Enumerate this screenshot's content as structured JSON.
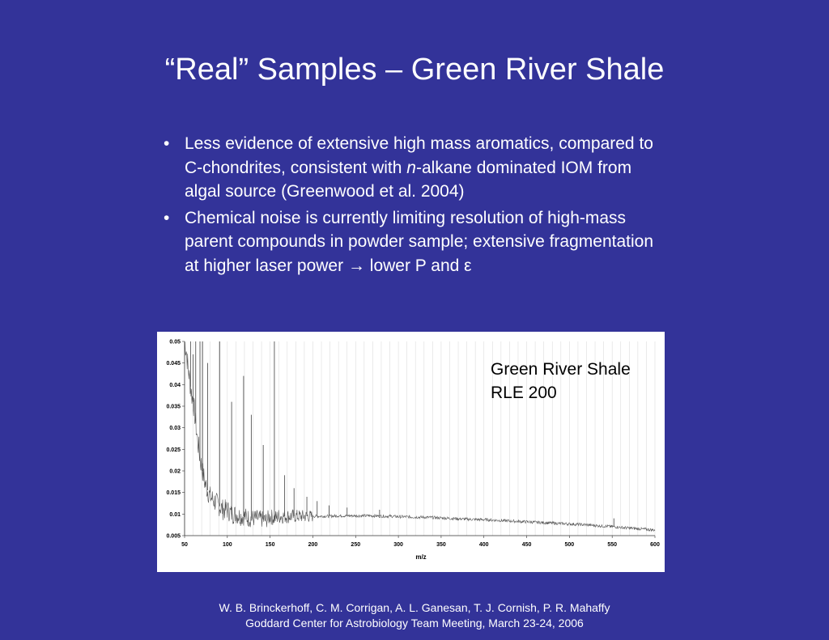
{
  "slide": {
    "title": "“Real” Samples – Green River Shale",
    "bullets": [
      {
        "line1": "Less evidence of extensive high mass aromatics, compared to",
        "line2_a": "C-chondrites, consistent with ",
        "line2_em": "n",
        "line2_b": "-alkane dominated IOM from",
        "line3": "algal source (Greenwood et al. 2004)"
      },
      {
        "line1": "Chemical noise is currently limiting resolution of high-mass",
        "line2": "parent compounds in powder sample; extensive fragmentation",
        "line3_a": "at higher laser power ",
        "arrow": "→",
        "line3_b": " lower P and ",
        "epsilon": "ε"
      }
    ],
    "bullet_glyph": "•",
    "footer": {
      "line1": "W. B. Brinckerhoff, C. M. Corrigan, A. L. Ganesan, T. J. Cornish, P. R. Mahaffy",
      "line2": "Goddard Center for Astrobiology Team Meeting, March 23-24, 2006"
    }
  },
  "chart_data": {
    "type": "line",
    "xlabel": "m/z",
    "ylabel": "",
    "annotation_line1": "Green River Shale",
    "annotation_line2": "RLE 200",
    "xlim": [
      50,
      600
    ],
    "ylim": [
      0.005,
      0.05
    ],
    "x_ticks": [
      "50",
      "100",
      "150",
      "200",
      "250",
      "300",
      "350",
      "400",
      "450",
      "500",
      "550",
      "600"
    ],
    "y_ticks": [
      "0.05",
      "0.045",
      "0.04",
      "0.035",
      "0.03",
      "0.025",
      "0.02",
      "0.015",
      "0.01",
      "0.005"
    ],
    "grid": "vertical",
    "line_color": "#555555",
    "background_color": "#333399",
    "series": [
      {
        "x": [
          50,
          52,
          54,
          56,
          58,
          60,
          62,
          64,
          66,
          68,
          70,
          72,
          74,
          76,
          78,
          80,
          85,
          90,
          95,
          100,
          105,
          110,
          115,
          120,
          125,
          130,
          135,
          140,
          145,
          150,
          155,
          160,
          165,
          170,
          175,
          180,
          185,
          190,
          195,
          200,
          210,
          220,
          230,
          240,
          250,
          260,
          270,
          280,
          290,
          300,
          320,
          340,
          360,
          380,
          400,
          420,
          440,
          460,
          480,
          500,
          520,
          540,
          550,
          560,
          580,
          600
        ],
        "y": [
          0.05,
          0.048,
          0.044,
          0.041,
          0.038,
          0.036,
          0.033,
          0.029,
          0.026,
          0.023,
          0.021,
          0.019,
          0.017,
          0.016,
          0.015,
          0.014,
          0.013,
          0.012,
          0.011,
          0.011,
          0.01,
          0.01,
          0.0095,
          0.0095,
          0.009,
          0.009,
          0.009,
          0.0088,
          0.0085,
          0.0095,
          0.009,
          0.0095,
          0.0095,
          0.0095,
          0.0095,
          0.0095,
          0.0095,
          0.0095,
          0.0095,
          0.0095,
          0.0095,
          0.0095,
          0.0096,
          0.0096,
          0.0096,
          0.0096,
          0.0096,
          0.0095,
          0.0095,
          0.0094,
          0.0093,
          0.0092,
          0.009,
          0.0088,
          0.0087,
          0.0085,
          0.0083,
          0.0081,
          0.0079,
          0.0077,
          0.0075,
          0.0072,
          0.0071,
          0.0069,
          0.0066,
          0.0063
        ]
      }
    ],
    "peaks": [
      {
        "x": 57,
        "y": 0.05
      },
      {
        "x": 60,
        "y": 0.047
      },
      {
        "x": 63,
        "y": 0.05
      },
      {
        "x": 68,
        "y": 0.05
      },
      {
        "x": 71,
        "y": 0.05
      },
      {
        "x": 77,
        "y": 0.045
      },
      {
        "x": 91,
        "y": 0.05
      },
      {
        "x": 105,
        "y": 0.036
      },
      {
        "x": 119,
        "y": 0.042
      },
      {
        "x": 128,
        "y": 0.033
      },
      {
        "x": 142,
        "y": 0.026
      },
      {
        "x": 155,
        "y": 0.05
      },
      {
        "x": 167,
        "y": 0.019
      },
      {
        "x": 178,
        "y": 0.016
      },
      {
        "x": 193,
        "y": 0.014
      },
      {
        "x": 205,
        "y": 0.013
      },
      {
        "x": 219,
        "y": 0.012
      },
      {
        "x": 240,
        "y": 0.0115
      },
      {
        "x": 278,
        "y": 0.011
      },
      {
        "x": 552,
        "y": 0.009
      }
    ]
  }
}
